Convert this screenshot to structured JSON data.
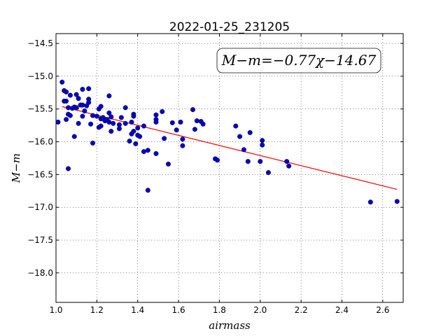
{
  "chart_data": {
    "type": "scatter",
    "title": "2022-01-25_231205",
    "xlabel": "airmass",
    "ylabel": "M−m",
    "xlim": [
      1.0,
      2.7
    ],
    "ylim": [
      -18.45,
      -14.35
    ],
    "xticks": [
      1.0,
      1.2,
      1.4,
      1.6,
      1.8,
      2.0,
      2.2,
      2.4,
      2.6
    ],
    "xtick_labels": [
      "1.0",
      "1.2",
      "1.4",
      "1.6",
      "1.8",
      "2.0",
      "2.2",
      "2.4",
      "2.6"
    ],
    "yticks": [
      -14.5,
      -15.0,
      -15.5,
      -16.0,
      -16.5,
      -17.0,
      -17.5,
      -18.0
    ],
    "ytick_labels": [
      "−14.5",
      "−15.0",
      "−15.5",
      "−16.0",
      "−16.5",
      "−17.0",
      "−17.5",
      "−18.0"
    ],
    "grid": true,
    "annotation": "M−m=−0.77χ−14.67",
    "fit": {
      "slope": -0.77,
      "intercept": -14.67,
      "x_range": [
        1.03,
        2.67
      ],
      "color": "#ff0000"
    },
    "point_color": "#0000cc",
    "points": [
      [
        1.01,
        -15.7
      ],
      [
        1.03,
        -15.09
      ],
      [
        1.04,
        -15.22
      ],
      [
        1.04,
        -15.38
      ],
      [
        1.05,
        -15.24
      ],
      [
        1.05,
        -15.38
      ],
      [
        1.05,
        -15.66
      ],
      [
        1.06,
        -15.58
      ],
      [
        1.06,
        -15.48
      ],
      [
        1.07,
        -15.29
      ],
      [
        1.06,
        -16.41
      ],
      [
        1.07,
        -15.6
      ],
      [
        1.08,
        -15.49
      ],
      [
        1.09,
        -15.47
      ],
      [
        1.1,
        -15.48
      ],
      [
        1.09,
        -15.92
      ],
      [
        1.1,
        -15.28
      ],
      [
        1.11,
        -15.34
      ],
      [
        1.11,
        -15.72
      ],
      [
        1.12,
        -15.44
      ],
      [
        1.13,
        -15.2
      ],
      [
        1.13,
        -15.44
      ],
      [
        1.13,
        -15.61
      ],
      [
        1.14,
        -15.53
      ],
      [
        1.15,
        -15.45
      ],
      [
        1.16,
        -15.19
      ],
      [
        1.16,
        -15.35
      ],
      [
        1.16,
        -15.4
      ],
      [
        1.17,
        -15.73
      ],
      [
        1.18,
        -15.6
      ],
      [
        1.18,
        -16.02
      ],
      [
        1.2,
        -15.61
      ],
      [
        1.21,
        -15.5
      ],
      [
        1.21,
        -15.78
      ],
      [
        1.22,
        -15.46
      ],
      [
        1.22,
        -15.65
      ],
      [
        1.22,
        -15.76
      ],
      [
        1.23,
        -15.63
      ],
      [
        1.24,
        -15.68
      ],
      [
        1.25,
        -15.66
      ],
      [
        1.26,
        -15.3
      ],
      [
        1.26,
        -15.56
      ],
      [
        1.26,
        -15.7
      ],
      [
        1.27,
        -15.62
      ],
      [
        1.27,
        -15.84
      ],
      [
        1.28,
        -15.72
      ],
      [
        1.31,
        -15.74
      ],
      [
        1.31,
        -15.8
      ],
      [
        1.32,
        -15.63
      ],
      [
        1.34,
        -15.48
      ],
      [
        1.34,
        -15.72
      ],
      [
        1.36,
        -15.99
      ],
      [
        1.37,
        -15.88
      ],
      [
        1.37,
        -15.7
      ],
      [
        1.38,
        -15.58
      ],
      [
        1.38,
        -15.61
      ],
      [
        1.38,
        -15.84
      ],
      [
        1.39,
        -16.03
      ],
      [
        1.4,
        -15.79
      ],
      [
        1.4,
        -15.9
      ],
      [
        1.41,
        -15.92
      ],
      [
        1.43,
        -15.76
      ],
      [
        1.43,
        -16.15
      ],
      [
        1.45,
        -16.13
      ],
      [
        1.45,
        -16.74
      ],
      [
        1.49,
        -15.59
      ],
      [
        1.49,
        -15.66
      ],
      [
        1.49,
        -15.7
      ],
      [
        1.49,
        -16.18
      ],
      [
        1.52,
        -15.54
      ],
      [
        1.53,
        -15.95
      ],
      [
        1.55,
        -16.34
      ],
      [
        1.57,
        -15.71
      ],
      [
        1.59,
        -15.82
      ],
      [
        1.61,
        -15.7
      ],
      [
        1.62,
        -15.96
      ],
      [
        1.62,
        -16.06
      ],
      [
        1.67,
        -15.51
      ],
      [
        1.68,
        -15.81
      ],
      [
        1.69,
        -15.68
      ],
      [
        1.71,
        -15.69
      ],
      [
        1.72,
        -15.73
      ],
      [
        1.78,
        -16.26
      ],
      [
        1.79,
        -16.28
      ],
      [
        1.88,
        -15.76
      ],
      [
        1.9,
        -15.92
      ],
      [
        1.92,
        -16.12
      ],
      [
        1.94,
        -16.3
      ],
      [
        1.95,
        -15.86
      ],
      [
        2.0,
        -16.3
      ],
      [
        2.01,
        -15.98
      ],
      [
        2.01,
        -16.05
      ],
      [
        2.04,
        -16.47
      ],
      [
        2.13,
        -16.3
      ],
      [
        2.14,
        -16.37
      ],
      [
        2.54,
        -16.92
      ],
      [
        2.67,
        -16.91
      ]
    ]
  }
}
